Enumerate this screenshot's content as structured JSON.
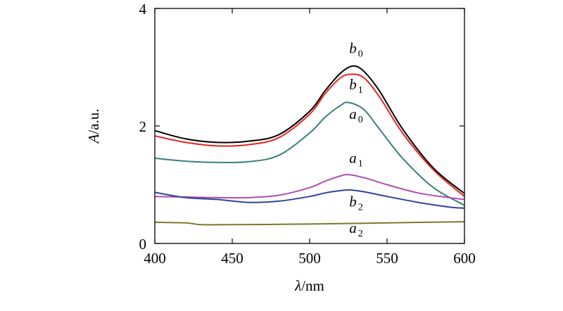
{
  "chart_data": {
    "type": "line",
    "title": "",
    "xlabel": "λ/nm",
    "xlabel_parts": {
      "symbol": "λ",
      "unit": "/nm"
    },
    "ylabel": "A/a.u.",
    "ylabel_parts": {
      "symbol": "A",
      "unit": "/a.u."
    },
    "xlim": [
      400,
      600
    ],
    "ylim": [
      0,
      4
    ],
    "x_ticks": [
      400,
      450,
      500,
      550,
      600
    ],
    "y_ticks": [
      0,
      2,
      4
    ],
    "grid": false,
    "legend": "inline labels",
    "series": [
      {
        "name": "b0",
        "label_main": "b",
        "label_sub": "0",
        "color": "#000000",
        "x": [
          400,
          420,
          440,
          460,
          480,
          500,
          510,
          520,
          528,
          535,
          545,
          560,
          580,
          600
        ],
        "y": [
          1.92,
          1.78,
          1.72,
          1.74,
          1.85,
          2.25,
          2.6,
          2.9,
          3.02,
          2.93,
          2.6,
          1.95,
          1.28,
          0.85
        ]
      },
      {
        "name": "b1",
        "label_main": "b",
        "label_sub": "1",
        "color": "#e8231f",
        "x": [
          400,
          420,
          440,
          460,
          480,
          500,
          510,
          520,
          527,
          535,
          545,
          560,
          580,
          600
        ],
        "y": [
          1.83,
          1.72,
          1.66,
          1.68,
          1.8,
          2.2,
          2.55,
          2.82,
          2.88,
          2.82,
          2.5,
          1.88,
          1.25,
          0.8
        ]
      },
      {
        "name": "a0",
        "label_main": "a",
        "label_sub": "0",
        "color": "#3a7f7a",
        "x": [
          400,
          420,
          440,
          460,
          480,
          500,
          510,
          520,
          525,
          535,
          545,
          560,
          580,
          600
        ],
        "y": [
          1.45,
          1.4,
          1.38,
          1.39,
          1.5,
          1.88,
          2.15,
          2.35,
          2.4,
          2.28,
          1.95,
          1.45,
          0.95,
          0.65
        ]
      },
      {
        "name": "a1",
        "label_main": "a",
        "label_sub": "1",
        "color": "#b04fb0",
        "x": [
          400,
          420,
          440,
          460,
          480,
          500,
          510,
          520,
          525,
          535,
          550,
          570,
          590,
          600
        ],
        "y": [
          0.8,
          0.79,
          0.78,
          0.78,
          0.82,
          0.95,
          1.06,
          1.15,
          1.17,
          1.12,
          1.0,
          0.86,
          0.78,
          0.75
        ]
      },
      {
        "name": "b2",
        "label_main": "b",
        "label_sub": "2",
        "color": "#33449a",
        "x": [
          400,
          420,
          440,
          460,
          480,
          500,
          510,
          520,
          526,
          535,
          550,
          570,
          590,
          600
        ],
        "y": [
          0.87,
          0.78,
          0.75,
          0.7,
          0.72,
          0.8,
          0.86,
          0.9,
          0.91,
          0.88,
          0.8,
          0.7,
          0.62,
          0.6
        ]
      },
      {
        "name": "a2",
        "label_main": "a",
        "label_sub": "2",
        "color": "#7a7a2a",
        "x": [
          400,
          420,
          430,
          450,
          500,
          550,
          600
        ],
        "y": [
          0.36,
          0.35,
          0.32,
          0.32,
          0.33,
          0.35,
          0.37
        ]
      }
    ]
  }
}
